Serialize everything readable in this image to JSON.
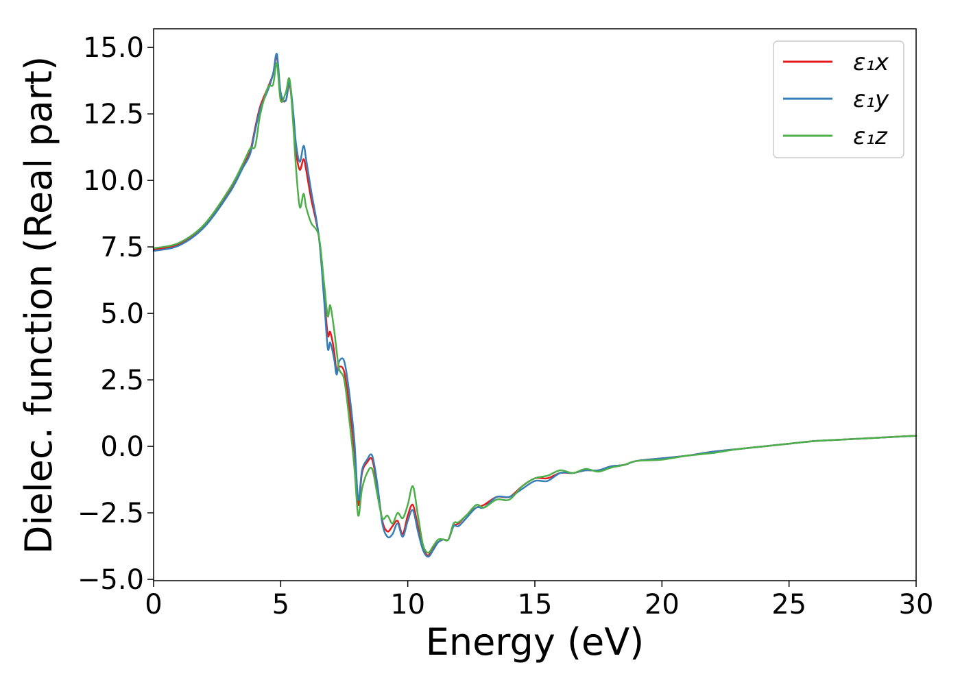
{
  "chart_data": {
    "type": "line",
    "title": "",
    "xlabel": "Energy (eV)",
    "ylabel": "Dielec. function (Real part)",
    "xlim": [
      0,
      30
    ],
    "ylim": [
      -5.05,
      15.7
    ],
    "xticks": [
      0,
      5,
      10,
      15,
      20,
      25,
      30
    ],
    "xtick_labels": [
      "0",
      "5",
      "10",
      "15",
      "20",
      "25",
      "30"
    ],
    "yticks": [
      -5.0,
      -2.5,
      0.0,
      2.5,
      5.0,
      7.5,
      10.0,
      12.5,
      15.0
    ],
    "ytick_labels": [
      "−5.0",
      "−2.5",
      "0.0",
      "2.5",
      "5.0",
      "7.5",
      "10.0",
      "12.5",
      "15.0"
    ],
    "grid": false,
    "legend_position": "top-right",
    "series": [
      {
        "name": "ε₁x",
        "color": "#e41a1c",
        "x": [
          0,
          1,
          2,
          3,
          3.5,
          3.8,
          4.0,
          4.2,
          4.5,
          4.7,
          4.85,
          5.0,
          5.2,
          5.35,
          5.5,
          5.6,
          5.75,
          5.9,
          6.0,
          6.2,
          6.5,
          6.7,
          6.85,
          6.95,
          7.1,
          7.2,
          7.3,
          7.5,
          7.7,
          7.9,
          8.05,
          8.2,
          8.4,
          8.6,
          8.8,
          9.0,
          9.2,
          9.4,
          9.6,
          9.8,
          10.0,
          10.2,
          10.4,
          10.6,
          10.8,
          11.0,
          11.2,
          11.4,
          11.6,
          11.8,
          12.0,
          12.3,
          12.7,
          13.0,
          13.5,
          14.0,
          14.5,
          15.0,
          15.5,
          16.0,
          16.5,
          17.0,
          17.5,
          18.0,
          18.5,
          19.0,
          20.0,
          21.0,
          22.0,
          23.0,
          24.0,
          25.0,
          26.0,
          27.0,
          28.0,
          29.0,
          30.0
        ],
        "values": [
          7.4,
          7.6,
          8.3,
          9.6,
          10.5,
          11.1,
          12.0,
          12.8,
          13.5,
          14.0,
          14.65,
          13.2,
          13.0,
          13.6,
          12.3,
          11.1,
          10.4,
          10.8,
          10.4,
          9.3,
          7.9,
          5.8,
          4.2,
          4.3,
          3.6,
          2.8,
          3.0,
          2.8,
          1.5,
          -0.2,
          -2.2,
          -1.0,
          -0.6,
          -0.5,
          -1.5,
          -2.8,
          -3.2,
          -3.0,
          -2.8,
          -3.3,
          -2.6,
          -2.2,
          -3.0,
          -3.8,
          -4.1,
          -3.8,
          -3.6,
          -3.5,
          -3.5,
          -3.0,
          -2.9,
          -2.6,
          -2.3,
          -2.2,
          -1.9,
          -1.9,
          -1.5,
          -1.2,
          -1.2,
          -1.0,
          -1.0,
          -0.9,
          -0.9,
          -0.75,
          -0.7,
          -0.55,
          -0.45,
          -0.35,
          -0.2,
          -0.1,
          0.0,
          0.1,
          0.2,
          0.25,
          0.3,
          0.35,
          0.4
        ]
      },
      {
        "name": "ε₁y",
        "color": "#377eb8",
        "x": [
          0,
          1,
          2,
          3,
          3.5,
          3.8,
          4.0,
          4.2,
          4.5,
          4.7,
          4.85,
          5.0,
          5.2,
          5.35,
          5.5,
          5.6,
          5.75,
          5.9,
          6.0,
          6.2,
          6.5,
          6.7,
          6.85,
          6.95,
          7.1,
          7.2,
          7.3,
          7.5,
          7.7,
          7.9,
          8.05,
          8.2,
          8.4,
          8.6,
          8.8,
          9.0,
          9.2,
          9.4,
          9.6,
          9.8,
          10.0,
          10.2,
          10.4,
          10.6,
          10.8,
          11.0,
          11.2,
          11.4,
          11.6,
          11.8,
          12.0,
          12.3,
          12.7,
          13.0,
          13.5,
          14.0,
          14.5,
          15.0,
          15.5,
          16.0,
          16.5,
          17.0,
          17.5,
          18.0,
          18.5,
          19.0,
          20.0,
          21.0,
          22.0,
          23.0,
          24.0,
          25.0,
          26.0,
          27.0,
          28.0,
          29.0,
          30.0
        ],
        "values": [
          7.35,
          7.55,
          8.25,
          9.55,
          10.45,
          11.0,
          11.9,
          12.7,
          13.4,
          14.0,
          14.75,
          13.3,
          13.0,
          13.7,
          12.5,
          11.4,
          10.7,
          11.3,
          10.8,
          9.6,
          7.9,
          5.6,
          3.7,
          3.9,
          3.3,
          2.7,
          3.2,
          3.2,
          2.0,
          0.2,
          -2.0,
          -0.9,
          -0.5,
          -0.35,
          -1.4,
          -2.9,
          -3.4,
          -3.3,
          -2.9,
          -3.4,
          -2.8,
          -2.4,
          -3.2,
          -3.9,
          -4.15,
          -3.9,
          -3.6,
          -3.5,
          -3.5,
          -3.0,
          -3.0,
          -2.7,
          -2.3,
          -2.3,
          -1.9,
          -1.9,
          -1.6,
          -1.3,
          -1.3,
          -1.0,
          -1.0,
          -0.9,
          -0.9,
          -0.75,
          -0.7,
          -0.55,
          -0.45,
          -0.35,
          -0.2,
          -0.1,
          0.0,
          0.1,
          0.2,
          0.25,
          0.3,
          0.35,
          0.4
        ]
      },
      {
        "name": "ε₁z",
        "color": "#4daf4a",
        "x": [
          0,
          1,
          2,
          3,
          3.5,
          3.8,
          4.0,
          4.2,
          4.5,
          4.7,
          4.85,
          5.0,
          5.2,
          5.35,
          5.5,
          5.6,
          5.75,
          5.9,
          6.0,
          6.2,
          6.5,
          6.7,
          6.85,
          6.95,
          7.1,
          7.2,
          7.3,
          7.5,
          7.7,
          7.9,
          8.05,
          8.2,
          8.4,
          8.6,
          8.8,
          9.0,
          9.2,
          9.4,
          9.6,
          9.8,
          10.0,
          10.2,
          10.4,
          10.6,
          10.8,
          11.0,
          11.2,
          11.4,
          11.6,
          11.8,
          12.0,
          12.3,
          12.7,
          13.0,
          13.5,
          14.0,
          14.5,
          15.0,
          15.5,
          16.0,
          16.5,
          17.0,
          17.5,
          18.0,
          18.5,
          19.0,
          20.0,
          21.0,
          22.0,
          23.0,
          24.0,
          25.0,
          26.0,
          27.0,
          28.0,
          29.0,
          30.0
        ],
        "values": [
          7.45,
          7.65,
          8.35,
          9.7,
          10.6,
          11.2,
          11.3,
          12.5,
          13.5,
          13.6,
          14.4,
          13.0,
          13.3,
          13.8,
          12.0,
          10.5,
          9.0,
          9.5,
          9.0,
          8.4,
          7.9,
          6.2,
          4.9,
          5.3,
          4.4,
          3.6,
          2.9,
          2.5,
          1.0,
          -0.8,
          -2.6,
          -1.6,
          -1.0,
          -0.85,
          -1.8,
          -2.7,
          -2.6,
          -2.9,
          -2.5,
          -2.7,
          -2.2,
          -1.5,
          -2.6,
          -3.7,
          -4.0,
          -3.75,
          -3.5,
          -3.5,
          -3.5,
          -2.9,
          -2.85,
          -2.6,
          -2.2,
          -2.3,
          -2.0,
          -2.0,
          -1.5,
          -1.2,
          -1.1,
          -0.9,
          -1.0,
          -0.85,
          -0.95,
          -0.8,
          -0.7,
          -0.55,
          -0.5,
          -0.35,
          -0.25,
          -0.1,
          0.0,
          0.1,
          0.2,
          0.25,
          0.3,
          0.35,
          0.4
        ]
      }
    ]
  }
}
